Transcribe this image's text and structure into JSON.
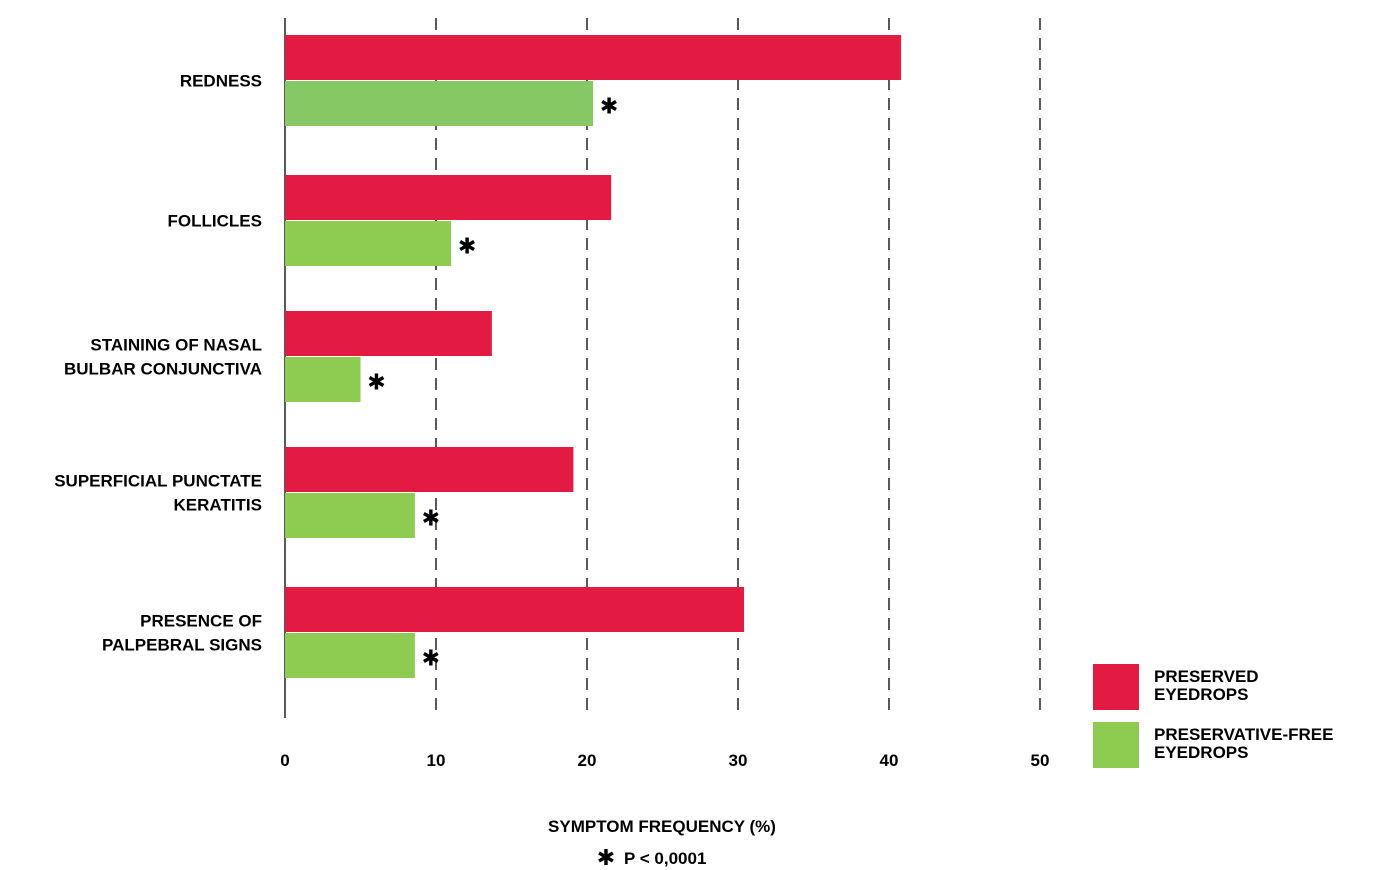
{
  "chart_data": {
    "type": "bar",
    "orientation": "horizontal",
    "categories": [
      [
        "REDNESS"
      ],
      [
        "FOLLICLES"
      ],
      [
        "STAINING OF NASAL",
        "BULBAR CONJUNCTIVA"
      ],
      [
        "SUPERFICIAL PUNCTATE",
        "KERATITIS"
      ],
      [
        "PRESENCE OF",
        "PALPEBRAL SIGNS"
      ]
    ],
    "series": [
      {
        "name": [
          "PRESERVED",
          "EYEDROPS"
        ],
        "color": "#e31b42",
        "values": [
          40.8,
          21.6,
          13.7,
          19.1,
          30.4
        ]
      },
      {
        "name": [
          "PRESERVATIVE-FREE",
          "EYEDROPS"
        ],
        "color": "#8dcc51",
        "values": [
          20.4,
          11.0,
          5.0,
          8.6,
          8.6
        ]
      }
    ],
    "significance_marker": "✱",
    "significant": [
      true,
      true,
      true,
      true,
      true
    ],
    "xlabel": "SYMPTOM FREQUENCY (%)",
    "xlim": [
      0,
      50
    ],
    "xticks": [
      "0",
      "10",
      "20",
      "30",
      "40",
      "50"
    ],
    "grid": "vertical dashed",
    "legend_position": "bottom-right",
    "footnote": {
      "marker": "✱",
      "text": "P < 0,0001"
    },
    "first_bar_shade": "#86c864"
  }
}
